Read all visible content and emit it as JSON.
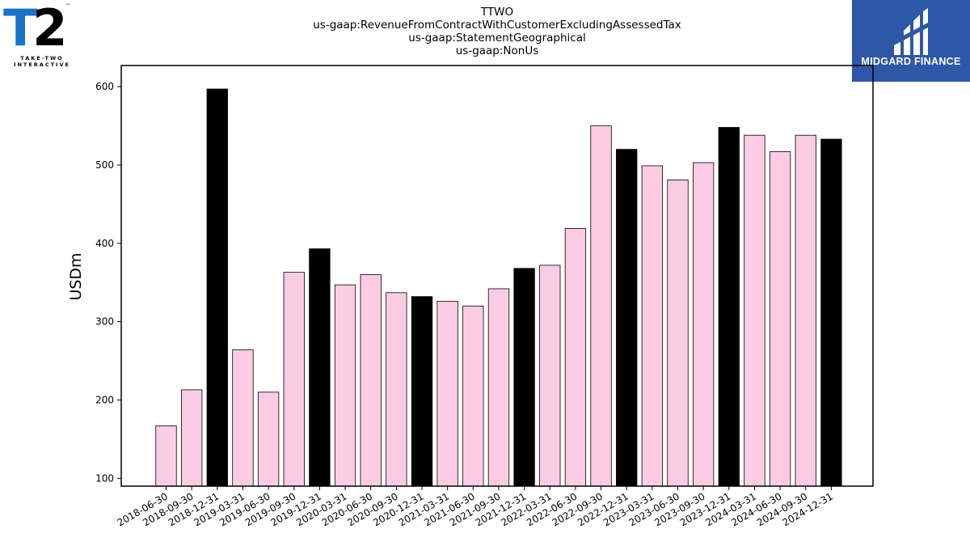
{
  "title_lines": [
    "TTWO",
    "us-gaap:RevenueFromContractWithCustomerExcludingAssessedTax",
    "us-gaap:StatementGeographical",
    "us-gaap:NonUs"
  ],
  "logos": {
    "left": {
      "main": "T2",
      "sub": "TAKE-TWO INTERACTIVE",
      "tm": "™"
    },
    "right": {
      "text": "MIDGARD FINANCE",
      "bg": "#2f57a8"
    }
  },
  "chart_data": {
    "type": "bar",
    "ylabel": "USDm",
    "xlabel": "",
    "ylim": [
      90,
      627
    ],
    "yticks": [
      100,
      200,
      300,
      400,
      500,
      600
    ],
    "colors": {
      "quarter": "#fbcce4",
      "year_end": "#000000",
      "edge": "#000000"
    },
    "categories": [
      "2018-06-30",
      "2018-09-30",
      "2018-12-31",
      "2019-03-31",
      "2019-06-30",
      "2019-09-30",
      "2019-12-31",
      "2020-03-31",
      "2020-06-30",
      "2020-09-30",
      "2020-12-31",
      "2021-03-31",
      "2021-06-30",
      "2021-09-30",
      "2021-12-31",
      "2022-03-31",
      "2022-06-30",
      "2022-09-30",
      "2022-12-31",
      "2023-03-31",
      "2023-06-30",
      "2023-09-30",
      "2023-12-31",
      "2024-03-31",
      "2024-06-30",
      "2024-09-30",
      "2024-12-31"
    ],
    "values": [
      167,
      213,
      597,
      264,
      210,
      363,
      393,
      347,
      360,
      337,
      332,
      326,
      320,
      342,
      368,
      372,
      419,
      550,
      520,
      499,
      481,
      503,
      548,
      538,
      517,
      538,
      533
    ],
    "highlight": [
      false,
      false,
      true,
      false,
      false,
      false,
      true,
      false,
      false,
      false,
      true,
      false,
      false,
      false,
      true,
      false,
      false,
      false,
      true,
      false,
      false,
      false,
      true,
      false,
      false,
      false,
      true
    ]
  }
}
